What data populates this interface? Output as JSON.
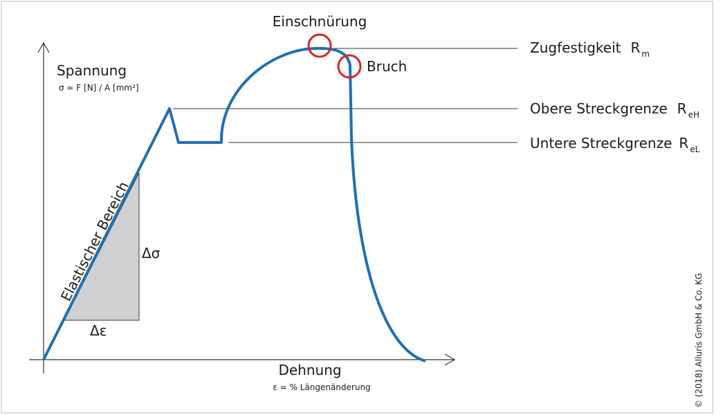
{
  "axes": {
    "y_label": "Spannung",
    "y_formula": "σ =  F [N] / A [mm²]",
    "x_label": "Dehnung",
    "x_formula": "ε = % Längenänderung"
  },
  "annotations": {
    "necking": "Einschnürung",
    "fracture": "Bruch",
    "elastic": "Elastischer Bereich",
    "delta_sigma": "Δσ",
    "delta_epsilon": "Δε"
  },
  "levels": [
    {
      "label": "Zugfestigkeit",
      "symbol": "R",
      "subscript": "m"
    },
    {
      "label": "Obere Streckgrenze",
      "symbol": "R",
      "subscript": "eH"
    },
    {
      "label": "Untere Streckgrenze",
      "symbol": "R",
      "subscript": "eL"
    }
  ],
  "copyright": "© (2018) Alluris GmbH & Co. KG"
}
